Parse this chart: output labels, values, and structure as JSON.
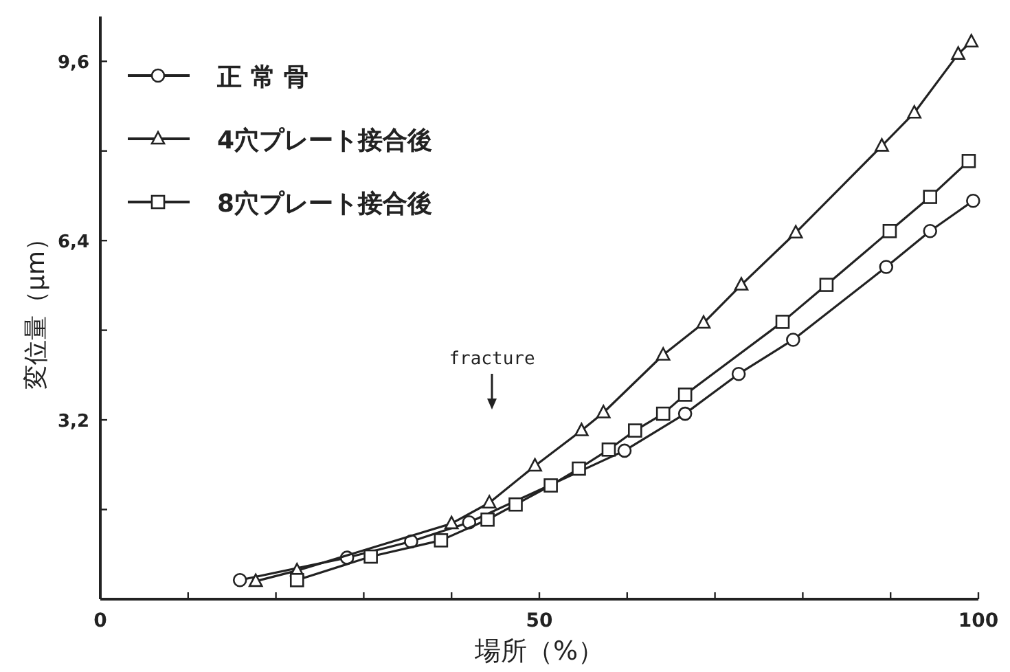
{
  "chart_data": {
    "type": "line",
    "xlabel": "場所（%）",
    "ylabel": "変位量（μm）",
    "xlim": [
      0,
      100
    ],
    "xticks": [
      0,
      {
        "value": 10,
        "label": null
      },
      {
        "value": 20,
        "label": null
      },
      {
        "value": 30,
        "label": null
      },
      {
        "value": 40,
        "label": null
      },
      50,
      {
        "value": 60,
        "label": null
      },
      {
        "value": 70,
        "label": null
      },
      {
        "value": 80,
        "label": null
      },
      {
        "value": 90,
        "label": null
      },
      100
    ],
    "ylim": [
      0,
      10.4
    ],
    "yticks": [
      {
        "value": 1.6,
        "label": null
      },
      {
        "value": 3.2,
        "label": "3,2"
      },
      {
        "value": 4.8,
        "label": null
      },
      {
        "value": 6.4,
        "label": "6,4"
      },
      {
        "value": 8.0,
        "label": null
      },
      {
        "value": 9.6,
        "label": "9,6"
      }
    ],
    "grid": false,
    "legend": "top left",
    "line_style": "solid",
    "series": [
      {
        "name": "正 常 骨",
        "color": "#222222",
        "marker": "circle",
        "x": [
          15.9,
          28.1,
          35.4,
          42.0,
          59.7,
          66.6,
          72.7,
          78.9,
          89.5,
          94.5,
          99.4
        ],
        "values": [
          0.34,
          0.74,
          1.03,
          1.37,
          2.65,
          3.31,
          4.02,
          4.63,
          5.93,
          6.57,
          7.11
        ]
      },
      {
        "name": "4穴プレート接合後",
        "color": "#222222",
        "marker": "triangle",
        "x": [
          17.7,
          22.4,
          40.0,
          44.3,
          49.5,
          54.8,
          57.3,
          64.1,
          68.7,
          73.0,
          79.2,
          89.0,
          92.7,
          97.7,
          99.2
        ],
        "values": [
          0.32,
          0.51,
          1.35,
          1.72,
          2.38,
          3.01,
          3.33,
          4.36,
          4.93,
          5.61,
          6.54,
          8.09,
          8.68,
          9.73,
          9.95
        ]
      },
      {
        "name": "8穴プレート接合後",
        "color": "#222222",
        "marker": "square",
        "x": [
          22.4,
          30.8,
          38.8,
          44.1,
          47.3,
          51.3,
          54.5,
          57.9,
          60.9,
          64.1,
          66.6,
          77.7,
          82.7,
          89.9,
          94.5,
          98.9
        ],
        "values": [
          0.34,
          0.76,
          1.05,
          1.42,
          1.69,
          2.03,
          2.33,
          2.67,
          3.01,
          3.31,
          3.65,
          4.95,
          5.61,
          6.57,
          7.18,
          7.82
        ]
      }
    ],
    "annotations": [
      "fracture"
    ]
  }
}
